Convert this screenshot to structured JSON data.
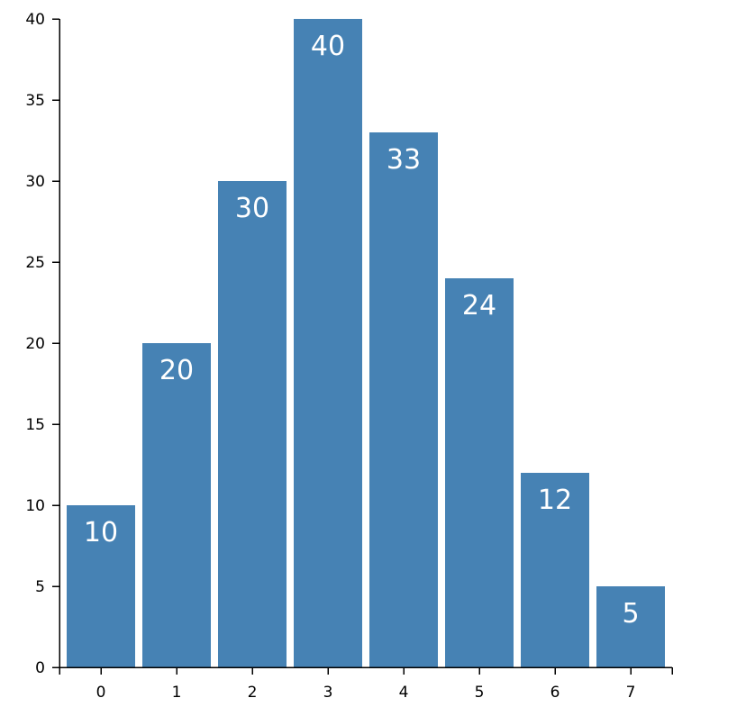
{
  "colors": {
    "bar": "#4682b4",
    "label": "#ffffff",
    "axis": "#000000"
  },
  "chart_data": {
    "type": "bar",
    "title": "",
    "xlabel": "",
    "ylabel": "",
    "categories": [
      "0",
      "1",
      "2",
      "3",
      "4",
      "5",
      "6",
      "7"
    ],
    "values": [
      10,
      20,
      30,
      40,
      33,
      24,
      12,
      5
    ],
    "ylim": [
      0,
      40
    ],
    "yticks": [
      0,
      5,
      10,
      15,
      20,
      25,
      30,
      35,
      40
    ],
    "grid": false,
    "legend": "none",
    "data_labels": true
  }
}
